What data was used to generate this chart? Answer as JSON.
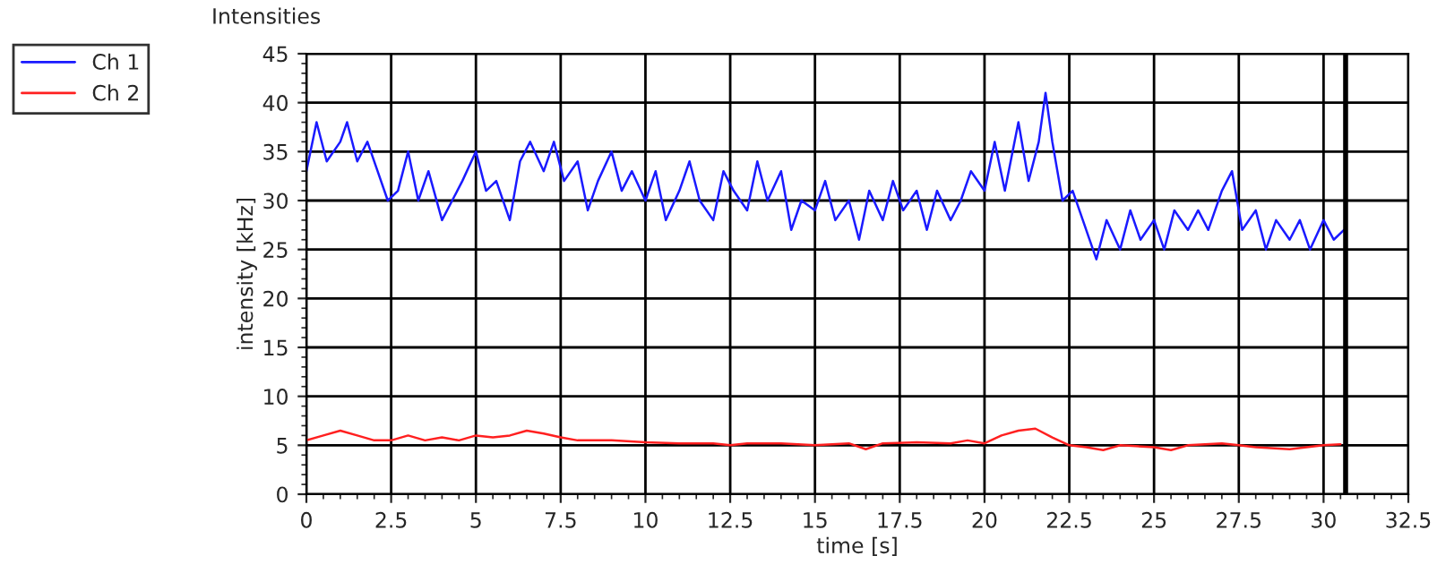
{
  "chart_data": {
    "type": "line",
    "title": "Intensities",
    "xlabel": "time [s]",
    "ylabel": "intensity [kHz]",
    "xlim": [
      0,
      32.5
    ],
    "xticks": [
      0,
      2.5,
      5,
      7.5,
      10,
      12.5,
      15,
      17.5,
      20,
      22.5,
      25,
      27.5,
      30,
      32.5
    ],
    "ylim": [
      0,
      45
    ],
    "yticks": [
      0,
      5,
      10,
      15,
      20,
      25,
      30,
      35,
      40,
      45
    ],
    "grid": true,
    "legend": "top left",
    "line_style": "solid",
    "marker": "none",
    "ref_lines": [
      {
        "axis": "x",
        "value": 30.65,
        "color": "#000000"
      }
    ],
    "series": [
      {
        "name": "Ch 1",
        "color": "#1a1aff",
        "x": [
          0,
          0.3,
          0.6,
          1,
          1.2,
          1.5,
          1.8,
          2.1,
          2.4,
          2.7,
          3,
          3.3,
          3.6,
          4,
          4.3,
          4.6,
          5,
          5.3,
          5.6,
          6,
          6.3,
          6.6,
          7,
          7.3,
          7.6,
          8,
          8.3,
          8.6,
          9,
          9.3,
          9.6,
          10,
          10.3,
          10.6,
          11,
          11.3,
          11.6,
          12,
          12.3,
          12.6,
          13,
          13.3,
          13.6,
          14,
          14.3,
          14.6,
          15,
          15.3,
          15.6,
          16,
          16.3,
          16.6,
          17,
          17.3,
          17.6,
          18,
          18.3,
          18.6,
          19,
          19.3,
          19.6,
          20,
          20.3,
          20.6,
          21,
          21.3,
          21.6,
          21.8,
          22,
          22.3,
          22.6,
          23,
          23.3,
          23.6,
          24,
          24.3,
          24.6,
          25,
          25.3,
          25.6,
          26,
          26.3,
          26.6,
          27,
          27.3,
          27.6,
          28,
          28.3,
          28.6,
          29,
          29.3,
          29.6,
          30,
          30.3,
          30.6
        ],
        "values": [
          33,
          38,
          34,
          36,
          38,
          34,
          36,
          33,
          30,
          31,
          35,
          30,
          33,
          28,
          30,
          32,
          35,
          31,
          32,
          28,
          34,
          36,
          33,
          36,
          32,
          34,
          29,
          32,
          35,
          31,
          33,
          30,
          33,
          28,
          31,
          34,
          30,
          28,
          33,
          31,
          29,
          34,
          30,
          33,
          27,
          30,
          29,
          32,
          28,
          30,
          26,
          31,
          28,
          32,
          29,
          31,
          27,
          31,
          28,
          30,
          33,
          31,
          36,
          31,
          38,
          32,
          36,
          41,
          36,
          30,
          31,
          27,
          24,
          28,
          25,
          29,
          26,
          28,
          25,
          29,
          27,
          29,
          27,
          31,
          33,
          27,
          29,
          25,
          28,
          26,
          28,
          25,
          28,
          26,
          27
        ]
      },
      {
        "name": "Ch 2",
        "color": "#ff2020",
        "x": [
          0,
          0.5,
          1,
          1.5,
          2,
          2.5,
          3,
          3.5,
          4,
          4.5,
          5,
          5.5,
          6,
          6.5,
          7,
          7.5,
          8,
          9,
          10,
          11,
          12,
          12.5,
          13,
          14,
          15,
          16,
          16.5,
          17,
          18,
          19,
          19.5,
          20,
          20.5,
          21,
          21.5,
          22,
          22.5,
          23,
          23.5,
          24,
          25,
          25.5,
          26,
          27,
          27.5,
          28,
          29,
          29.5,
          30,
          30.5
        ],
        "values": [
          5.5,
          6,
          6.5,
          6,
          5.5,
          5.5,
          6,
          5.5,
          5.8,
          5.5,
          6,
          5.8,
          6,
          6.5,
          6.2,
          5.8,
          5.5,
          5.5,
          5.3,
          5.2,
          5.2,
          5,
          5.2,
          5.2,
          5,
          5.2,
          4.6,
          5.2,
          5.3,
          5.2,
          5.5,
          5.2,
          6,
          6.5,
          6.7,
          5.8,
          5,
          4.8,
          4.5,
          5,
          4.8,
          4.5,
          5,
          5.2,
          5,
          4.8,
          4.6,
          4.8,
          5,
          5.1
        ]
      }
    ]
  }
}
